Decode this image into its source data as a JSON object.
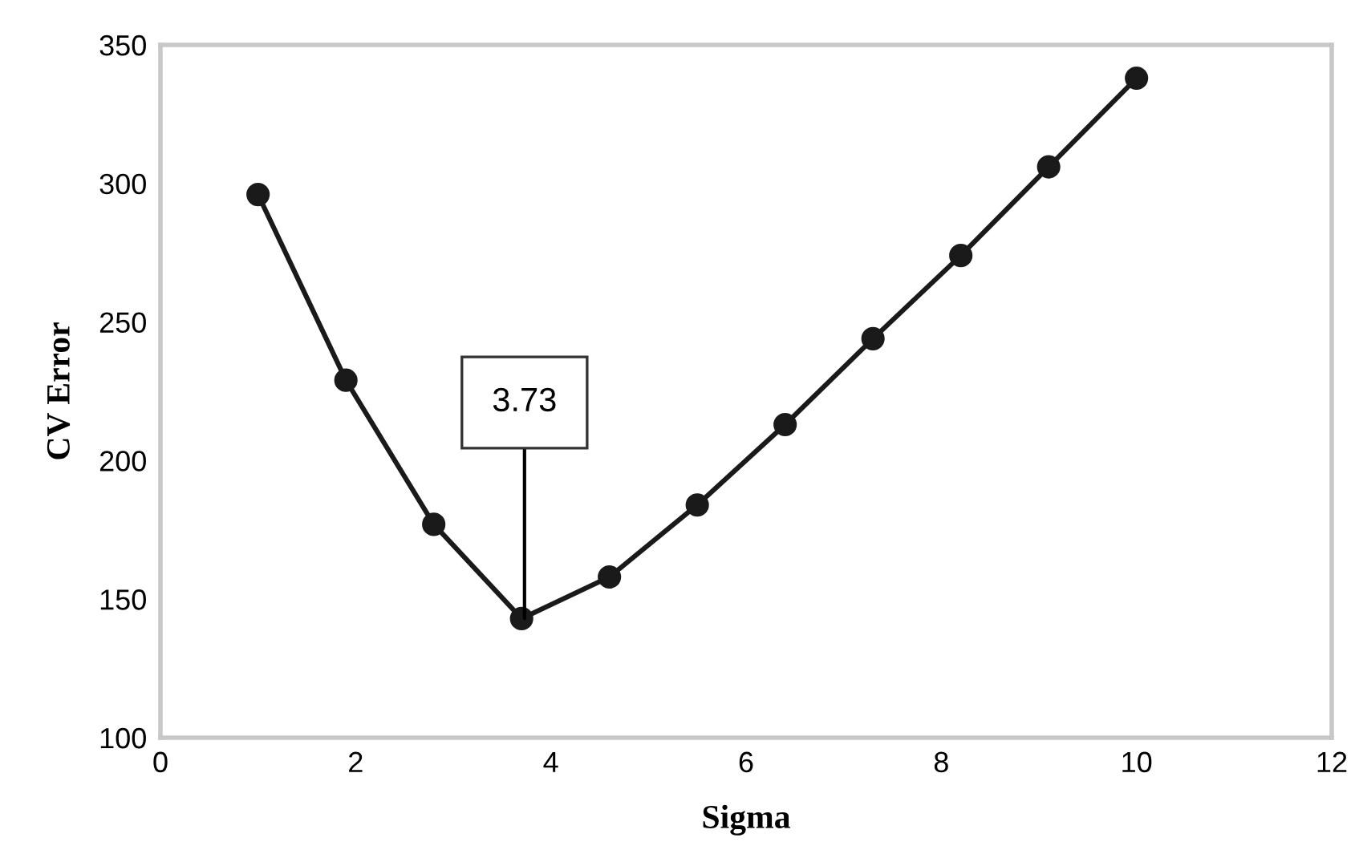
{
  "chart_data": {
    "type": "line",
    "xlabel": "Sigma",
    "ylabel": "CV Error",
    "x": [
      1,
      1.9,
      2.8,
      3.7,
      4.6,
      5.5,
      6.4,
      7.3,
      8.2,
      9.1,
      10
    ],
    "series": [
      {
        "color": "#1a1a1a",
        "values": [
          296,
          229,
          177,
          143,
          158,
          184,
          213,
          244,
          274,
          306,
          338
        ]
      }
    ],
    "xlim": [
      0,
      12
    ],
    "xticks": [
      0,
      2,
      4,
      6,
      8,
      10,
      12
    ],
    "ylim": [
      100,
      350
    ],
    "yticks": [
      100,
      150,
      200,
      250,
      300,
      350
    ],
    "annotations": [
      {
        "text": "3.73",
        "x": 3.73,
        "y": 143
      }
    ],
    "marker": "circle",
    "line_style": "solid",
    "grid": false
  }
}
